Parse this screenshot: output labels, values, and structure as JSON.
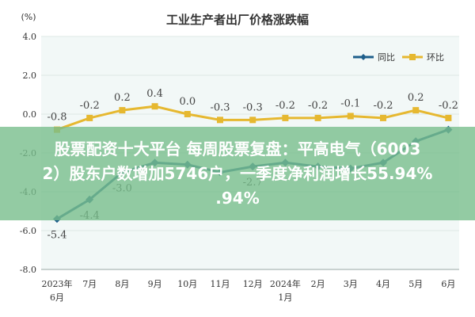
{
  "chart_data": {
    "type": "line",
    "title": "工业生产者出厂价格涨跌幅",
    "ylabel": "(%)",
    "xlabel": "",
    "ylim": [
      -8.0,
      4.0
    ],
    "yticks": [
      "4.0",
      "2.0",
      "0.0",
      "-2.0",
      "-4.0",
      "-6.0",
      "-8.0"
    ],
    "categories": [
      "2023年\n6月",
      "7月",
      "8月",
      "9月",
      "10月",
      "11月",
      "12月",
      "2024年\n1月",
      "2月",
      "3月",
      "4月",
      "5月",
      "6月"
    ],
    "grid": "horizontal",
    "legend_position": "top-right",
    "series": [
      {
        "name": "同比",
        "color": "#1f5f8b",
        "marker": "diamond",
        "values": [
          -5.4,
          -4.4,
          -3.0,
          -2.5,
          -2.6,
          -3.0,
          -2.7,
          -2.5,
          -2.7,
          -2.8,
          -2.5,
          -1.4,
          -0.8
        ],
        "labels": [
          "-5.4",
          "-4.4",
          "-3.0",
          "",
          "",
          "",
          "-2.7",
          "",
          "",
          "",
          "",
          "",
          ""
        ]
      },
      {
        "name": "环比",
        "color": "#e6b830",
        "marker": "square",
        "values": [
          -0.8,
          -0.2,
          0.2,
          0.4,
          0.0,
          -0.3,
          -0.3,
          -0.2,
          -0.2,
          -0.1,
          -0.2,
          0.2,
          -0.2
        ],
        "labels": [
          "-0.8",
          "-0.2",
          "0.2",
          "0.4",
          "0.0",
          "-0.3",
          "-0.3",
          "-0.2",
          "-0.2",
          "-0.1",
          "-0.2",
          "0.2",
          "-0.2"
        ]
      }
    ]
  },
  "overlay": {
    "line1": "股票配资十大平台 每周股票复盘：平高电气（6003",
    "line2": "2）股东户数增加5746户，一季度净利润增长55.94%",
    "line3": ".94%"
  },
  "colors": {
    "plot_background": "#f2f8f7",
    "grid": "#dde8e6",
    "overlay": "#78be8c"
  }
}
